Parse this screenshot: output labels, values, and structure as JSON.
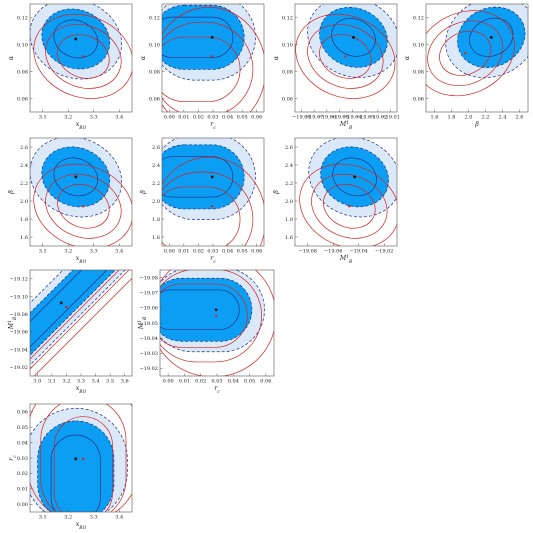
{
  "colors": {
    "outer_fill": "#dbe8f8",
    "inner_fill": "#0c9ef2",
    "blue_line": "#1e2f85",
    "red_line": "#d42222",
    "frame": "#555555",
    "center_dot": "#111111",
    "red_dot": "#d42222"
  },
  "chart_data": [
    {
      "type": "contour",
      "xlabel": "x_{BO}",
      "ylabel": "α",
      "xlim": [
        3.05,
        3.48
      ],
      "ylim": [
        0.055,
        0.123
      ],
      "xticks": [
        "3.1",
        "3.2",
        "3.3",
        "3.4"
      ],
      "yticks": [
        "0.06",
        "0.08",
        "0.10",
        "0.12"
      ],
      "blue_center": [
        3.243,
        0.101
      ],
      "red_center": [
        3.275,
        0.09
      ],
      "ellipse_shape": "tilted ellipse",
      "red_extends": "lower-right"
    },
    {
      "type": "contour",
      "xlabel": "r_c",
      "ylabel": "α",
      "xlim": [
        -0.002,
        0.063
      ],
      "ylim": [
        0.055,
        0.123
      ],
      "xticks": [
        "0.00",
        "0.01",
        "0.02",
        "0.03",
        "0.04",
        "0.05",
        "0.06"
      ],
      "yticks": [
        "0.06",
        "0.08",
        "0.10",
        "0.12"
      ],
      "blue_center": [
        0.03,
        0.102
      ],
      "red_center": [
        0.03,
        0.09
      ],
      "ellipse_shape": "truncated at r_c = 0",
      "red_extends": "down"
    },
    {
      "type": "contour",
      "xlabel": "M^1_B",
      "ylabel": "α",
      "xlim": [
        -19.083,
        -19.008
      ],
      "ylim": [
        0.055,
        0.123
      ],
      "xticks": [
        "−19.08",
        "−19.07",
        "−19.06",
        "−19.05",
        "−19.04",
        "−19.03",
        "−19.02",
        "−19.01"
      ],
      "yticks": [
        "0.06",
        "0.08",
        "0.10",
        "0.12"
      ],
      "blue_center": [
        -19.04,
        0.102
      ],
      "red_center": [
        -19.046,
        0.09
      ],
      "ellipse_shape": "tilted ellipse",
      "red_extends": "lower-left"
    },
    {
      "type": "contour",
      "xlabel": "β",
      "ylabel": "α",
      "xlim": [
        1.5,
        2.75
      ],
      "ylim": [
        0.055,
        0.123
      ],
      "xticks": [
        "1.6",
        "1.8",
        "2.0",
        "2.2",
        "2.4",
        "2.6"
      ],
      "yticks": [
        "0.06",
        "0.08",
        "0.10",
        "0.12"
      ],
      "blue_center": [
        2.3,
        0.102
      ],
      "red_center": [
        1.98,
        0.092
      ],
      "ellipse_shape": "tilted ellipse",
      "red_extends": "left"
    },
    {
      "type": "contour",
      "xlabel": "x_{BO}",
      "ylabel": "β",
      "xlim": [
        3.05,
        3.48
      ],
      "ylim": [
        1.5,
        2.75
      ],
      "xticks": [
        "3.1",
        "3.2",
        "3.3",
        "3.4"
      ],
      "yticks": [
        "1.6",
        "1.8",
        "2.0",
        "2.2",
        "2.4",
        "2.6"
      ],
      "blue_center": [
        3.243,
        2.3
      ],
      "red_center": [
        3.275,
        1.96
      ],
      "ellipse_shape": "tilted ellipse",
      "red_extends": "down"
    },
    {
      "type": "contour",
      "xlabel": "r_c",
      "ylabel": "β",
      "xlim": [
        -0.002,
        0.063
      ],
      "ylim": [
        1.5,
        2.75
      ],
      "xticks": [
        "0.00",
        "0.01",
        "0.02",
        "0.03",
        "0.04",
        "0.05",
        "0.06"
      ],
      "yticks": [
        "1.6",
        "1.8",
        "2.0",
        "2.2",
        "2.4",
        "2.6"
      ],
      "blue_center": [
        0.03,
        2.3
      ],
      "red_center": [
        0.03,
        1.96
      ],
      "ellipse_shape": "truncated at r_c = 0",
      "red_extends": "down"
    },
    {
      "type": "contour",
      "xlabel": "M^1_B",
      "ylabel": "β",
      "xlim": [
        -19.085,
        -19.008
      ],
      "ylim": [
        1.5,
        2.75
      ],
      "xticks": [
        "−19.08",
        "−19.06",
        "−19.04",
        "−19.02"
      ],
      "yticks": [
        "1.6",
        "1.8",
        "2.0",
        "2.2",
        "2.4",
        "2.6"
      ],
      "blue_center": [
        -19.04,
        2.3
      ],
      "red_center": [
        -19.044,
        1.96
      ],
      "ellipse_shape": "tilted ellipse",
      "red_extends": "down"
    },
    {
      "type": "contour",
      "xlabel": "x_{BO}",
      "ylabel": "M^1_B",
      "xlim": [
        3.05,
        3.68
      ],
      "ylim": [
        -19.115,
        -19.015
      ],
      "xticks": [
        "3.0",
        "3.1",
        "3.2",
        "3.3",
        "3.4",
        "3.5",
        "3.6"
      ],
      "yticks": [
        "−19.02",
        "−19.04",
        "−19.06",
        "−19.08",
        "−19.10",
        "−19.12"
      ],
      "blue_center": [
        3.243,
        -19.046
      ],
      "red_center": [
        3.275,
        -19.05
      ],
      "ellipse_shape": "degenerate band",
      "red_extends": "along diagonal"
    },
    {
      "type": "contour",
      "xlabel": "r_c",
      "ylabel": "M^1_B",
      "xlim": [
        -0.002,
        0.063
      ],
      "ylim": [
        -19.085,
        -19.013
      ],
      "xticks": [
        "0.00",
        "0.01",
        "0.02",
        "0.03",
        "0.04",
        "0.05",
        "0.06"
      ],
      "yticks": [
        "−19.02",
        "−19.03",
        "−19.04",
        "−19.05",
        "−19.06",
        "−19.07",
        "−19.08"
      ],
      "blue_center": [
        0.03,
        -19.04
      ],
      "red_center": [
        0.03,
        -19.044
      ],
      "ellipse_shape": "truncated at r_c = 0",
      "red_extends": "right"
    },
    {
      "type": "contour",
      "xlabel": "x_{BO}",
      "ylabel": "r_c",
      "xlim": [
        3.05,
        3.48
      ],
      "ylim": [
        -0.002,
        0.063
      ],
      "xticks": [
        "3.1",
        "3.2",
        "3.3",
        "3.4"
      ],
      "yticks": [
        "0.00",
        "0.01",
        "0.02",
        "0.03",
        "0.04",
        "0.05",
        "0.06"
      ],
      "blue_center": [
        3.243,
        0.03
      ],
      "red_center": [
        3.275,
        0.03
      ],
      "ellipse_shape": "truncated at r_c = 0",
      "red_extends": "up"
    }
  ]
}
